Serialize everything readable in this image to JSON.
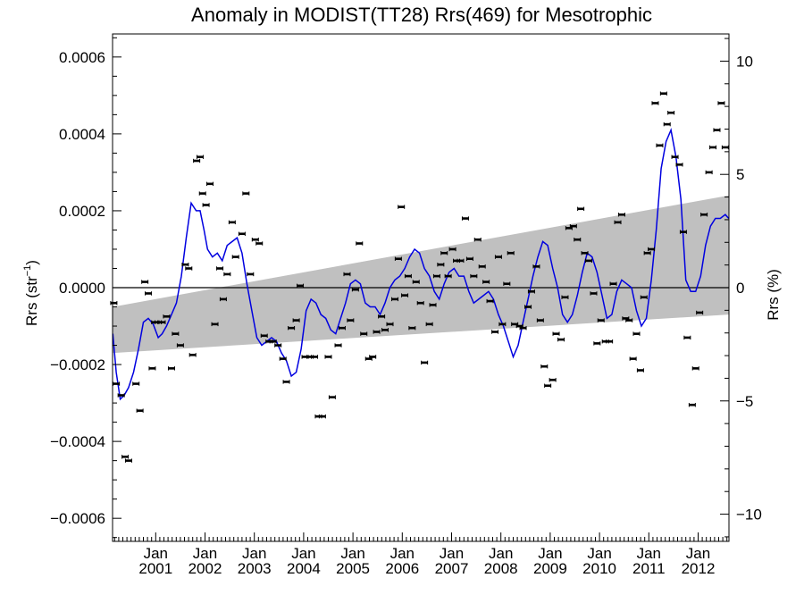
{
  "chart_data": {
    "type": "line",
    "title": "Anomaly in MODIST(TT28) Rrs(469) for Mesotrophic",
    "ylabel_left_main": "Rrs (str",
    "ylabel_left_exp": "−1",
    "ylabel_left_close": ")",
    "ylabel_right": "Rrs (%)",
    "xlim": [
      2000.125,
      2012.625
    ],
    "ylim": [
      -0.00066,
      0.00066
    ],
    "ylim_right": [
      -11.2,
      11.2
    ],
    "y_ticks": [
      {
        "value": 0.0006,
        "label": "0.0006"
      },
      {
        "value": 0.0004,
        "label": "0.0004"
      },
      {
        "value": 0.0002,
        "label": "0.0002"
      },
      {
        "value": 0.0,
        "label": "0.0000"
      },
      {
        "value": -0.0002,
        "label": "−0.0002"
      },
      {
        "value": -0.0004,
        "label": "−0.0004"
      },
      {
        "value": -0.0006,
        "label": "−0.0006"
      }
    ],
    "y_right_ticks": [
      {
        "value": 10,
        "label": "10"
      },
      {
        "value": 5,
        "label": "5"
      },
      {
        "value": 0,
        "label": "0"
      },
      {
        "value": -5,
        "label": "−5"
      },
      {
        "value": -10,
        "label": "−10"
      }
    ],
    "x_ticks": [
      {
        "value": 2001.0,
        "month": "Jan",
        "year": "2001"
      },
      {
        "value": 2002.0,
        "month": "Jan",
        "year": "2002"
      },
      {
        "value": 2003.0,
        "month": "Jan",
        "year": "2003"
      },
      {
        "value": 2004.0,
        "month": "Jan",
        "year": "2004"
      },
      {
        "value": 2005.0,
        "month": "Jan",
        "year": "2005"
      },
      {
        "value": 2006.0,
        "month": "Jan",
        "year": "2006"
      },
      {
        "value": 2007.0,
        "month": "Jan",
        "year": "2007"
      },
      {
        "value": 2008.0,
        "month": "Jan",
        "year": "2008"
      },
      {
        "value": 2009.0,
        "month": "Jan",
        "year": "2009"
      },
      {
        "value": 2010.0,
        "month": "Jan",
        "year": "2010"
      },
      {
        "value": 2011.0,
        "month": "Jan",
        "year": "2011"
      },
      {
        "value": 2012.0,
        "month": "Jan",
        "year": "2012"
      }
    ],
    "grid": false,
    "zero_line": 0.0,
    "confidence_band": {
      "color": "#c0c0c0",
      "x": [
        2000.125,
        2012.625
      ],
      "upper": [
        -5e-05,
        0.00024
      ],
      "lower": [
        -0.00017,
        -7e-05
      ]
    },
    "colors": {
      "smoothed": "#0000e0",
      "monthly": "#000000"
    },
    "monthly_points": [
      [
        2000.15,
        -4e-05
      ],
      [
        2000.2,
        -0.00025
      ],
      [
        2000.3,
        -0.00028
      ],
      [
        2000.38,
        -0.00044
      ],
      [
        2000.45,
        -0.00045
      ],
      [
        2000.6,
        -0.00025
      ],
      [
        2000.68,
        -0.00032
      ],
      [
        2000.78,
        1.5e-05
      ],
      [
        2000.85,
        -1.5e-05
      ],
      [
        2000.93,
        -0.00021
      ],
      [
        2000.98,
        -9e-05
      ],
      [
        2001.05,
        -9e-05
      ],
      [
        2001.13,
        -9e-05
      ],
      [
        2001.22,
        -7.5e-05
      ],
      [
        2001.32,
        -0.00021
      ],
      [
        2001.4,
        -0.00012
      ],
      [
        2001.5,
        -0.00015
      ],
      [
        2001.6,
        6e-05
      ],
      [
        2001.67,
        5e-05
      ],
      [
        2001.75,
        -0.000175
      ],
      [
        2001.83,
        0.00033
      ],
      [
        2001.9,
        0.00034
      ],
      [
        2001.95,
        0.000245
      ],
      [
        2002.02,
        0.000215
      ],
      [
        2002.1,
        0.00027
      ],
      [
        2002.2,
        -9.5e-05
      ],
      [
        2002.3,
        5e-05
      ],
      [
        2002.37,
        -3e-05
      ],
      [
        2002.45,
        3.5e-05
      ],
      [
        2002.55,
        0.00017
      ],
      [
        2002.62,
        8e-05
      ],
      [
        2002.75,
        0.00014
      ],
      [
        2002.83,
        0.000245
      ],
      [
        2002.92,
        3.5e-05
      ],
      [
        2003.02,
        0.000125
      ],
      [
        2003.1,
        0.000115
      ],
      [
        2003.2,
        -0.000125
      ],
      [
        2003.3,
        -0.00014
      ],
      [
        2003.38,
        -0.00014
      ],
      [
        2003.48,
        -0.00015
      ],
      [
        2003.58,
        -0.000185
      ],
      [
        2003.65,
        -0.000245
      ],
      [
        2003.75,
        -0.000105
      ],
      [
        2003.85,
        -8.5e-05
      ],
      [
        2003.93,
        5e-06
      ],
      [
        2004.03,
        -0.00018
      ],
      [
        2004.13,
        -0.00018
      ],
      [
        2004.22,
        -0.00018
      ],
      [
        2004.3,
        -0.000335
      ],
      [
        2004.38,
        -0.000335
      ],
      [
        2004.5,
        -0.00018
      ],
      [
        2004.58,
        -0.000285
      ],
      [
        2004.7,
        -0.00015
      ],
      [
        2004.78,
        -0.000105
      ],
      [
        2004.88,
        3.5e-05
      ],
      [
        2004.95,
        -8.5e-05
      ],
      [
        2005.05,
        -5e-06
      ],
      [
        2005.13,
        0.000115
      ],
      [
        2005.22,
        -0.00012
      ],
      [
        2005.32,
        -0.000185
      ],
      [
        2005.4,
        -0.00018
      ],
      [
        2005.48,
        -0.000115
      ],
      [
        2005.58,
        -7.5e-05
      ],
      [
        2005.65,
        -0.00011
      ],
      [
        2005.75,
        -9.5e-05
      ],
      [
        2005.85,
        -3e-05
      ],
      [
        2005.92,
        7.5e-05
      ],
      [
        2005.98,
        0.00021
      ],
      [
        2006.05,
        -2e-05
      ],
      [
        2006.12,
        3e-05
      ],
      [
        2006.2,
        -0.000105
      ],
      [
        2006.28,
        1.5e-05
      ],
      [
        2006.37,
        -4e-05
      ],
      [
        2006.45,
        -0.000195
      ],
      [
        2006.55,
        -9.5e-05
      ],
      [
        2006.62,
        -4.5e-05
      ],
      [
        2006.7,
        3e-05
      ],
      [
        2006.78,
        6e-05
      ],
      [
        2006.85,
        9e-05
      ],
      [
        2006.93,
        3e-05
      ],
      [
        2007.02,
        0.0001
      ],
      [
        2007.1,
        7e-05
      ],
      [
        2007.18,
        7e-05
      ],
      [
        2007.28,
        0.00018
      ],
      [
        2007.37,
        7.5e-05
      ],
      [
        2007.45,
        3e-05
      ],
      [
        2007.53,
        0.000125
      ],
      [
        2007.62,
        5.5e-05
      ],
      [
        2007.7,
        1.5e-05
      ],
      [
        2007.78,
        -3.5e-05
      ],
      [
        2007.88,
        -0.000115
      ],
      [
        2007.95,
        8e-05
      ],
      [
        2008.03,
        -9.5e-05
      ],
      [
        2008.12,
        1e-05
      ],
      [
        2008.2,
        9e-05
      ],
      [
        2008.28,
        -9.5e-05
      ],
      [
        2008.38,
        -0.0001
      ],
      [
        2008.45,
        -0.000105
      ],
      [
        2008.55,
        -5e-05
      ],
      [
        2008.62,
        -1e-05
      ],
      [
        2008.72,
        5.5e-05
      ],
      [
        2008.8,
        -8.5e-05
      ],
      [
        2008.88,
        -0.000205
      ],
      [
        2008.95,
        -0.000255
      ],
      [
        2009.05,
        -0.00024
      ],
      [
        2009.12,
        -0.00012
      ],
      [
        2009.22,
        -0.000135
      ],
      [
        2009.3,
        -2.5e-05
      ],
      [
        2009.38,
        0.000155
      ],
      [
        2009.47,
        0.00016
      ],
      [
        2009.55,
        0.000125
      ],
      [
        2009.62,
        0.000205
      ],
      [
        2009.7,
        9e-05
      ],
      [
        2009.78,
        7e-05
      ],
      [
        2009.88,
        -1.5e-05
      ],
      [
        2009.95,
        -0.000145
      ],
      [
        2010.03,
        -8.5e-05
      ],
      [
        2010.12,
        -0.00014
      ],
      [
        2010.2,
        -0.00014
      ],
      [
        2010.28,
        1e-05
      ],
      [
        2010.37,
        0.00017
      ],
      [
        2010.45,
        0.00019
      ],
      [
        2010.53,
        -8e-05
      ],
      [
        2010.6,
        -8.5e-05
      ],
      [
        2010.68,
        -0.000185
      ],
      [
        2010.75,
        -0.00012
      ],
      [
        2010.83,
        -0.000215
      ],
      [
        2010.9,
        -2.5e-05
      ],
      [
        2010.97,
        9e-05
      ],
      [
        2011.05,
        0.0001
      ],
      [
        2011.13,
        0.00048
      ],
      [
        2011.22,
        0.00037
      ],
      [
        2011.3,
        0.000505
      ],
      [
        2011.37,
        0.000425
      ],
      [
        2011.45,
        0.000455
      ],
      [
        2011.53,
        0.00034
      ],
      [
        2011.62,
        0.00032
      ],
      [
        2011.7,
        0.000145
      ],
      [
        2011.78,
        -0.00013
      ],
      [
        2011.88,
        -0.000305
      ],
      [
        2011.95,
        -0.00021
      ],
      [
        2012.03,
        -6.5e-05
      ],
      [
        2012.12,
        0.00019
      ],
      [
        2012.22,
        0.0003
      ],
      [
        2012.3,
        0.000365
      ],
      [
        2012.38,
        0.00041
      ],
      [
        2012.47,
        0.00048
      ],
      [
        2012.55,
        0.000365
      ]
    ],
    "smoothed_series": {
      "x": [
        2000.13,
        2000.2,
        2000.28,
        2000.36,
        2000.45,
        2000.55,
        2000.65,
        2000.75,
        2000.85,
        2000.95,
        2001.05,
        2001.13,
        2001.22,
        2001.32,
        2001.42,
        2001.52,
        2001.62,
        2001.72,
        2001.82,
        2001.9,
        2001.98,
        2002.05,
        2002.15,
        2002.25,
        2002.35,
        2002.45,
        2002.55,
        2002.65,
        2002.75,
        2002.85,
        2002.95,
        2003.05,
        2003.15,
        2003.25,
        2003.35,
        2003.45,
        2003.55,
        2003.65,
        2003.75,
        2003.85,
        2003.95,
        2004.05,
        2004.15,
        2004.25,
        2004.35,
        2004.45,
        2004.55,
        2004.65,
        2004.75,
        2004.85,
        2004.95,
        2005.05,
        2005.15,
        2005.25,
        2005.35,
        2005.45,
        2005.55,
        2005.65,
        2005.75,
        2005.85,
        2005.95,
        2006.05,
        2006.15,
        2006.25,
        2006.35,
        2006.45,
        2006.55,
        2006.65,
        2006.75,
        2006.85,
        2006.95,
        2007.05,
        2007.15,
        2007.25,
        2007.35,
        2007.45,
        2007.55,
        2007.65,
        2007.75,
        2007.85,
        2007.95,
        2008.05,
        2008.15,
        2008.25,
        2008.35,
        2008.45,
        2008.55,
        2008.65,
        2008.75,
        2008.85,
        2008.95,
        2009.05,
        2009.15,
        2009.25,
        2009.35,
        2009.45,
        2009.55,
        2009.65,
        2009.75,
        2009.85,
        2009.95,
        2010.05,
        2010.15,
        2010.25,
        2010.35,
        2010.45,
        2010.55,
        2010.65,
        2010.75,
        2010.85,
        2010.95,
        2011.05,
        2011.15,
        2011.25,
        2011.35,
        2011.45,
        2011.55,
        2011.65,
        2011.75,
        2011.85,
        2011.95,
        2012.05,
        2012.15,
        2012.25,
        2012.35,
        2012.45,
        2012.55,
        2012.62
      ],
      "values": [
        -0.00012,
        -0.00022,
        -0.00029,
        -0.00028,
        -0.00026,
        -0.00022,
        -0.00016,
        -9e-05,
        -8e-05,
        -9.5e-05,
        -0.00013,
        -0.00012,
        -0.0001,
        -7e-05,
        -4e-05,
        3e-05,
        0.00013,
        0.00022,
        0.0002,
        0.0002,
        0.00015,
        0.0001,
        8e-05,
        9e-05,
        7e-05,
        0.00011,
        0.00012,
        0.00013,
        9e-05,
        1e-05,
        -6e-05,
        -0.00013,
        -0.00015,
        -0.00014,
        -0.00013,
        -0.00014,
        -0.00017,
        -0.00019,
        -0.00023,
        -0.00022,
        -0.00016,
        -6e-05,
        -3e-05,
        -4e-05,
        -7e-05,
        -8e-05,
        -0.00011,
        -0.00012,
        -8e-05,
        -4e-05,
        1e-05,
        2e-05,
        1e-05,
        -4e-05,
        -5e-05,
        -5e-05,
        -7e-05,
        -4e-05,
        0.0,
        2e-05,
        3e-05,
        5e-05,
        8e-05,
        0.0001,
        9e-05,
        5e-05,
        3e-05,
        -1e-05,
        -3e-05,
        1e-05,
        4e-05,
        5e-05,
        3e-05,
        3e-05,
        -1e-05,
        -4e-05,
        -3e-05,
        -2e-05,
        -1e-05,
        -3e-05,
        -7e-05,
        -0.0001,
        -0.00014,
        -0.00018,
        -0.00015,
        -9e-05,
        -3e-05,
        3e-05,
        8e-05,
        0.00012,
        0.00011,
        5e-05,
        0.0,
        -7e-05,
        -9e-05,
        -7e-05,
        -2e-05,
        4e-05,
        9e-05,
        8e-05,
        4e-05,
        -2e-05,
        -8e-05,
        -7e-05,
        -1e-05,
        2e-05,
        1e-05,
        0.0,
        -6e-05,
        -0.0001,
        -8e-05,
        2e-05,
        0.00015,
        0.00031,
        0.00038,
        0.00041,
        0.00034,
        0.00023,
        2e-05,
        -1e-05,
        -1e-05,
        3e-05,
        0.00011,
        0.00016,
        0.00018,
        0.00018,
        0.00019,
        0.00018
      ]
    }
  }
}
